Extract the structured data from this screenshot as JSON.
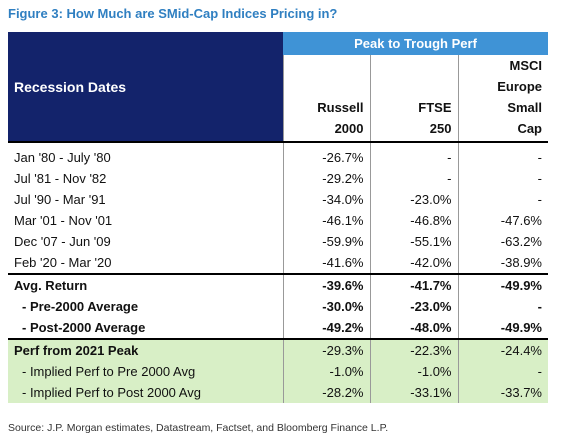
{
  "title": "Figure 3: How Much are SMid-Cap Indices Pricing in?",
  "table": {
    "header": {
      "left": "Recession Dates",
      "group": "Peak to Trough Perf",
      "columns": [
        [
          "Russell",
          "2000"
        ],
        [
          "FTSE",
          "250"
        ],
        [
          "MSCI",
          "Europe",
          "Small",
          "Cap"
        ]
      ]
    },
    "sections": [
      {
        "rows": [
          [
            "Jan '80 - July '80",
            "-26.7%",
            "-",
            "-"
          ],
          [
            "Jul '81 - Nov '82",
            "-29.2%",
            "-",
            "-"
          ],
          [
            "Jul '90 - Mar '91",
            "-34.0%",
            "-23.0%",
            "-"
          ],
          [
            "Mar '01 - Nov '01",
            "-46.1%",
            "-46.8%",
            "-47.6%"
          ],
          [
            "Dec '07 - Jun '09",
            "-59.9%",
            "-55.1%",
            "-63.2%"
          ],
          [
            "Feb '20 - Mar '20",
            "-41.6%",
            "-42.0%",
            "-38.9%"
          ]
        ]
      },
      {
        "rows": [
          [
            "Avg. Return",
            "-39.6%",
            "-41.7%",
            "-49.9%"
          ],
          [
            "- Pre-2000 Average",
            "-30.0%",
            "-23.0%",
            "-"
          ],
          [
            "- Post-2000 Average",
            "-49.2%",
            "-48.0%",
            "-49.9%"
          ]
        ]
      },
      {
        "rows": [
          [
            "Perf from 2021 Peak",
            "-29.3%",
            "-22.3%",
            "-24.4%"
          ],
          [
            "- Implied Perf to Pre 2000 Avg",
            "-1.0%",
            "-1.0%",
            "-"
          ],
          [
            "- Implied Perf to Post 2000 Avg",
            "-28.2%",
            "-33.1%",
            "-33.7%"
          ]
        ]
      }
    ]
  },
  "source": "Source: J.P. Morgan estimates, Datastream, Factset, and Bloomberg Finance L.P."
}
